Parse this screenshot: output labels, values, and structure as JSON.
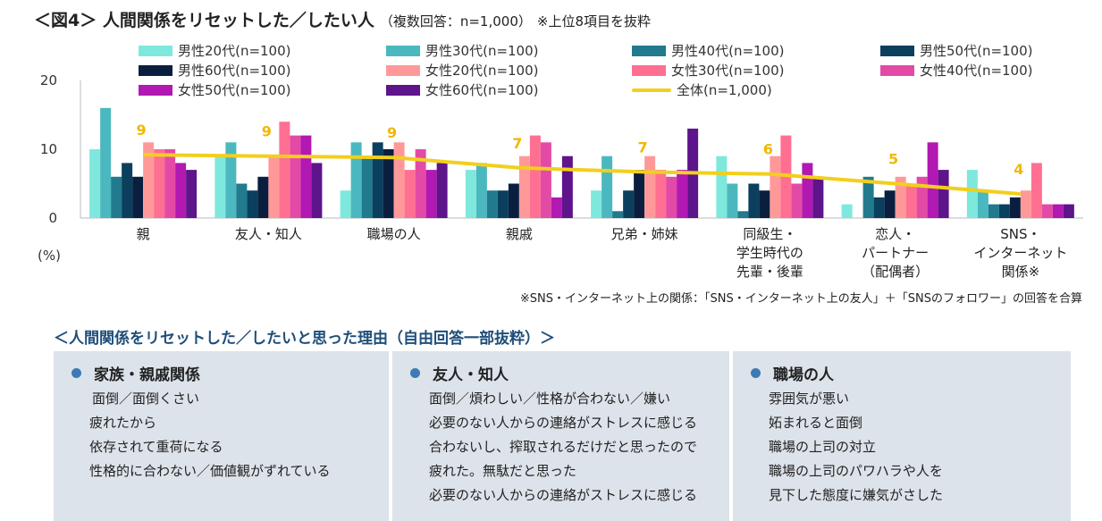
{
  "title": {
    "main": "＜図4＞ 人間関係をリセットした／したい人",
    "sub": "（複数回答：n=1,000）",
    "note": "※上位8項目を抜粋"
  },
  "chart_data": {
    "type": "bar",
    "ylim": [
      0,
      20
    ],
    "yticks": [
      0,
      10,
      20
    ],
    "ylabel": "(%)",
    "categories": [
      "親",
      "友人・知人",
      "職場の人",
      "親戚",
      "兄弟・姉妹",
      "同級生・\n学生時代の\n先輩・後輩",
      "恋人・\nパートナー\n（配偶者）",
      "SNS・\nインターネット\n関係※"
    ],
    "series": [
      {
        "name": "男性20代(n=100)",
        "color": "#7ee8dc",
        "values": [
          10,
          9,
          4,
          7,
          4,
          9,
          2,
          7
        ]
      },
      {
        "name": "男性30代(n=100)",
        "color": "#4bb8bf",
        "values": [
          16,
          11,
          11,
          8,
          9,
          5,
          0,
          4
        ]
      },
      {
        "name": "男性40代(n=100)",
        "color": "#217a8d",
        "values": [
          6,
          5,
          9,
          4,
          1,
          1,
          6,
          2
        ]
      },
      {
        "name": "男性50代(n=100)",
        "color": "#0b3f5e",
        "values": [
          8,
          4,
          11,
          4,
          4,
          5,
          3,
          2
        ]
      },
      {
        "name": "男性60代(n=100)",
        "color": "#0a1f3f",
        "values": [
          6,
          6,
          10,
          5,
          7,
          4,
          4,
          3
        ]
      },
      {
        "name": "女性20代(n=100)",
        "color": "#ff9999",
        "values": [
          11,
          9,
          11,
          9,
          9,
          9,
          6,
          4
        ]
      },
      {
        "name": "女性30代(n=100)",
        "color": "#ff6f91",
        "values": [
          10,
          14,
          7,
          12,
          7,
          12,
          5,
          8
        ]
      },
      {
        "name": "女性40代(n=100)",
        "color": "#e34aa6",
        "values": [
          10,
          12,
          10,
          11,
          6,
          5,
          6,
          2
        ]
      },
      {
        "name": "女性50代(n=100)",
        "color": "#b218b2",
        "values": [
          8,
          12,
          7,
          3,
          7,
          8,
          11,
          2
        ]
      },
      {
        "name": "女性60代(n=100)",
        "color": "#5e148a",
        "values": [
          7,
          8,
          8,
          9,
          13,
          6,
          7,
          2
        ]
      }
    ],
    "line": {
      "name": "全体(n=1,000)",
      "color": "#f2cf1d",
      "values": [
        9.2,
        9.0,
        8.8,
        7.3,
        6.7,
        6.4,
        5.0,
        3.5
      ],
      "labels": [
        "9",
        "9",
        "9",
        "7",
        "7",
        "6",
        "5",
        "4"
      ]
    },
    "legend_order": [
      "男性20代(n=100)",
      "男性30代(n=100)",
      "男性40代(n=100)",
      "男性50代(n=100)",
      "男性60代(n=100)",
      "女性20代(n=100)",
      "女性30代(n=100)",
      "女性40代(n=100)",
      "女性50代(n=100)",
      "女性60代(n=100)",
      "全体(n=1,000)"
    ]
  },
  "footnote": "※SNS・インターネット上の関係：「SNS・インターネット上の友人」＋「SNSのフォロワー」の回答を合算",
  "reasons": {
    "title": "＜人間関係をリセットした／したいと思った理由（自由回答一部抜粋）＞",
    "boxes": [
      {
        "heading": "家族・親戚関係",
        "lines": [
          "面倒／面倒くさい",
          "疲れたから",
          "依存されて重荷になる",
          "性格的に合わない／価値観がずれている"
        ]
      },
      {
        "heading": "友人・知人",
        "lines": [
          "面倒／煩わしい／性格が合わない／嫌い",
          "必要のない人からの連絡がストレスに感じる",
          "合わないし、搾取されるだけだと思ったので",
          "疲れた。無駄だと思った",
          "必要のない人からの連絡がストレスに感じる"
        ]
      },
      {
        "heading": "職場の人",
        "lines": [
          "雰囲気が悪い",
          "妬まれると面倒",
          "職場の上司の対立",
          "職場の上司のパワハラや人を",
          "見下した態度に嫌気がさした"
        ]
      }
    ]
  }
}
